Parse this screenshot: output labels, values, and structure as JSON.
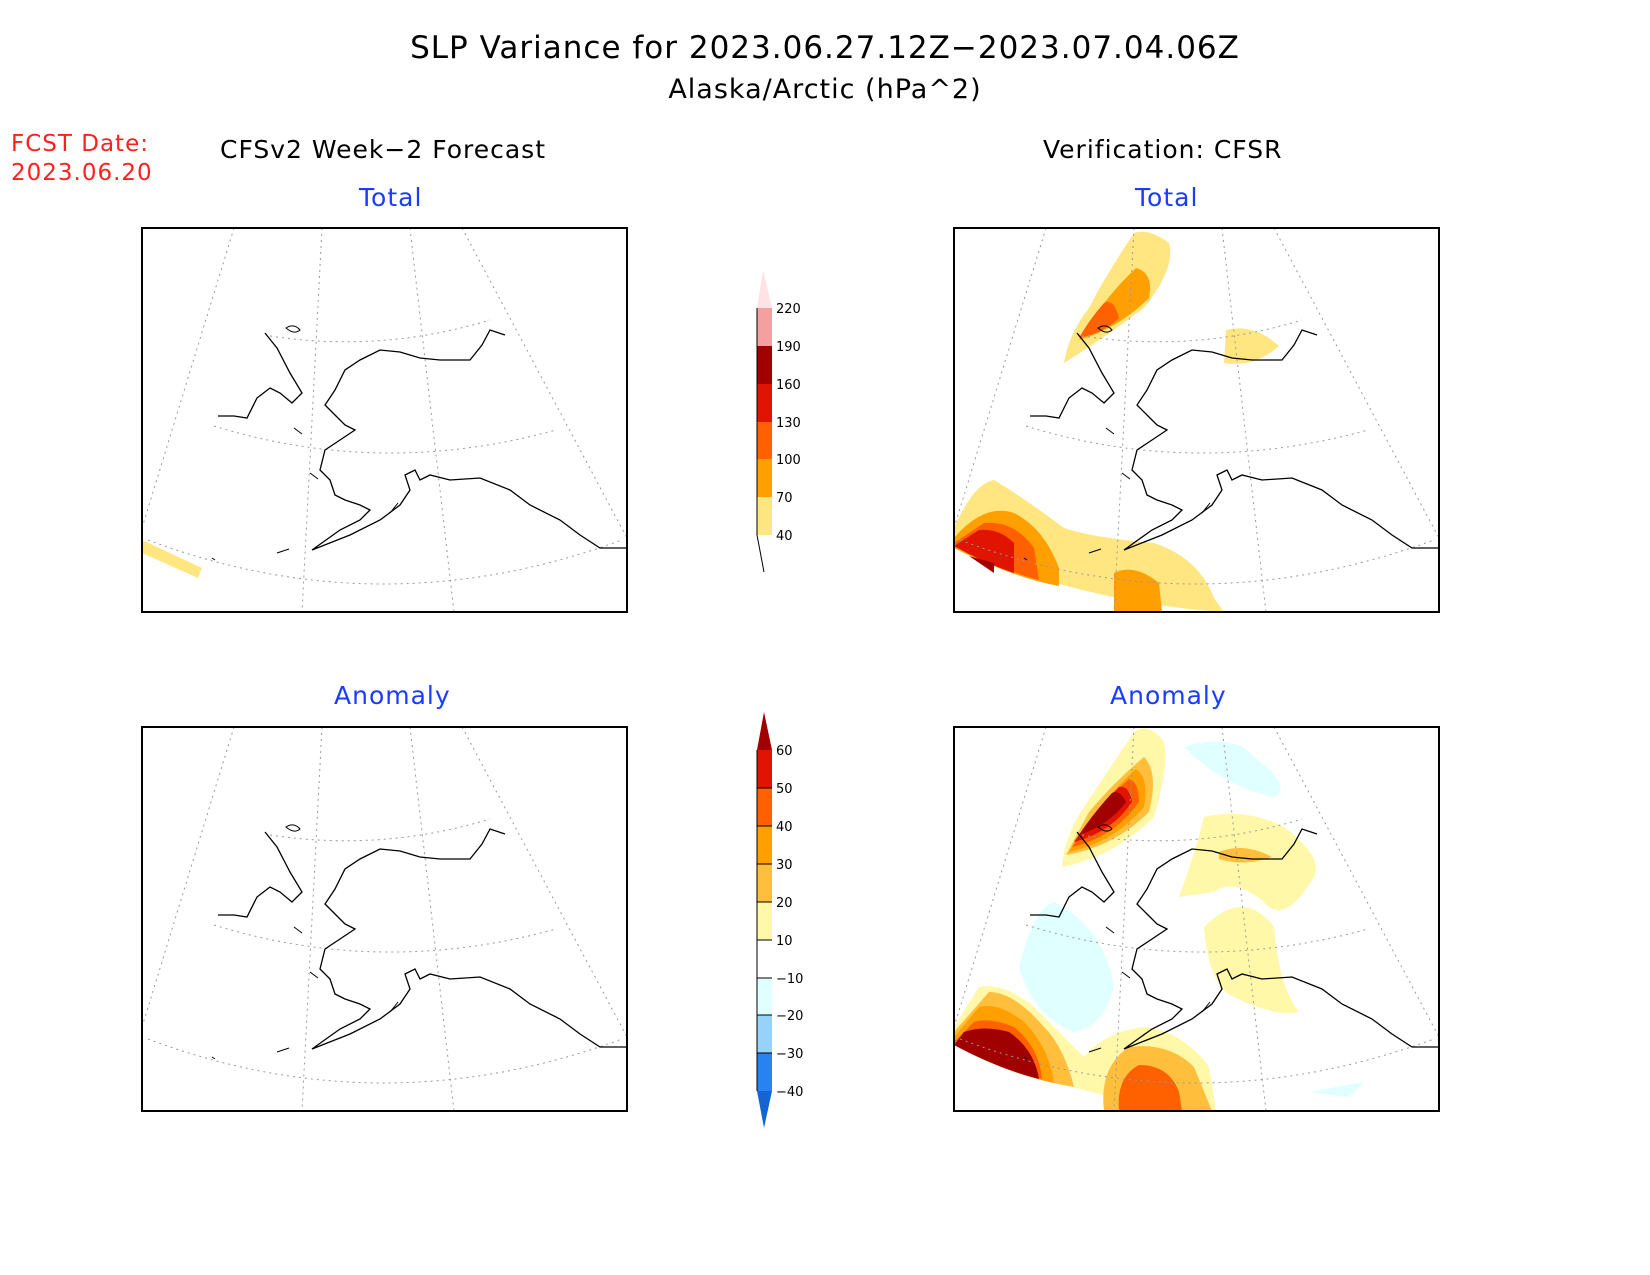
{
  "title": "SLP Variance for 2023.06.27.12Z−2023.07.04.06Z",
  "subtitle": "Alaska/Arctic (hPa^2)",
  "fcst_date": {
    "label": "FCST Date:",
    "value": "2023.06.20"
  },
  "columns": {
    "left": "CFSv2 Week−2 Forecast",
    "right": "Verification: CFSR"
  },
  "panels": {
    "forecast_total": "Total",
    "verification_total": "Total",
    "forecast_anomaly": "Anomaly",
    "verification_anomaly": "Anomaly"
  },
  "colorbar_total": {
    "levels": [
      "220",
      "190",
      "160",
      "130",
      "100",
      "70",
      "40"
    ],
    "colors": [
      "#fde3e3",
      "#f4a0a0",
      "#a00000",
      "#e01400",
      "#ff6000",
      "#ffa000",
      "#ffe680"
    ]
  },
  "colorbar_anomaly": {
    "levels": [
      "60",
      "50",
      "40",
      "30",
      "20",
      "10",
      "−10",
      "−20",
      "−30",
      "−40"
    ],
    "colors": [
      "#a00000",
      "#e01400",
      "#ff6000",
      "#ffa000",
      "#ffbe3c",
      "#fff8a8",
      "#ffffff",
      "#e0ffff",
      "#96d2fa",
      "#2882f0",
      "#1464d2"
    ]
  }
}
